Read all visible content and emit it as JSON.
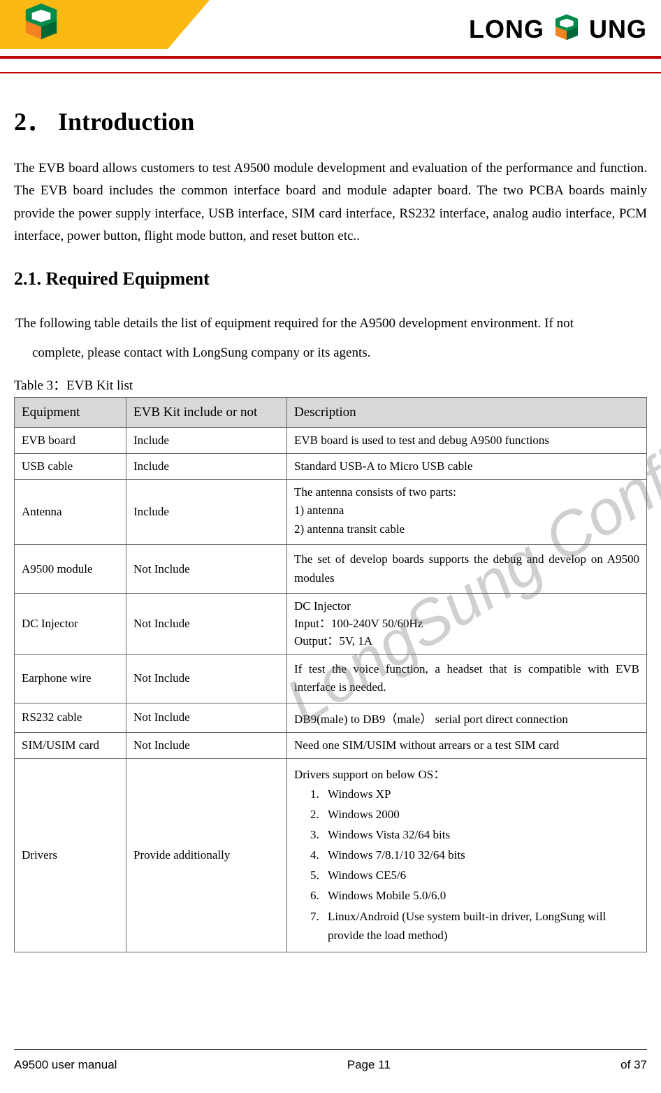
{
  "brand": {
    "name_left": "LONG",
    "name_right": "UNG"
  },
  "colors": {
    "accent_red": "#c00000",
    "accent_yellow": "#fdb913",
    "table_header_bg": "#d9d9d9",
    "logo_green": "#008c4a",
    "logo_orange": "#f58220"
  },
  "watermark": "LongSung Confidential",
  "heading1": "2． Introduction",
  "intro_paragraph": "The EVB board allows customers to test A9500 module development and evaluation of the performance and function. The EVB board includes the common interface board and module adapter board. The two PCBA boards mainly provide the power supply interface, USB interface, SIM card interface, RS232 interface, analog audio interface, PCM interface, power button, flight mode button, and reset button etc..",
  "heading2": "2.1. Required Equipment",
  "lead_line1": "The following table details the list of equipment required for the A9500 development environment. If not",
  "lead_line2": "complete, please contact with LongSung company or its agents.",
  "table_caption": "Table 3：EVB Kit list",
  "table": {
    "headers": [
      "Equipment",
      "EVB Kit include or not",
      "Description"
    ],
    "rows": [
      {
        "eq": "EVB board",
        "inc": "Include",
        "desc": "EVB board is used to test and debug A9500 functions"
      },
      {
        "eq": "USB cable",
        "inc": "Include",
        "desc": "Standard USB-A to Micro USB cable"
      },
      {
        "eq": "Antenna",
        "inc": "Include",
        "desc_intro": "The antenna consists of two parts:",
        "desc_list_paren": [
          "antenna",
          "antenna transit cable"
        ]
      },
      {
        "eq": "A9500 module",
        "inc": "Not Include",
        "desc": "The set of develop boards supports the debug and develop on A9500 modules",
        "justify": true
      },
      {
        "eq": "DC Injector",
        "inc": "Not Include",
        "desc_lines": [
          "DC Injector",
          "Input：100-240V 50/60Hz",
          "Output：5V, 1A"
        ]
      },
      {
        "eq": "Earphone wire",
        "inc": "Not Include",
        "desc": "If test the voice function, a headset that is compatible with EVB interface is needed.",
        "justify": true
      },
      {
        "eq": "RS232 cable",
        "inc": "Not Include",
        "desc": "DB9(male) to DB9（male）  serial port direct connection"
      },
      {
        "eq": "SIM/USIM card",
        "inc": "Not Include",
        "desc": "Need one SIM/USIM without arrears or a test SIM card"
      },
      {
        "eq": "Drivers",
        "inc": "Provide additionally",
        "desc_intro": "Drivers support on below OS：",
        "desc_list_num": [
          "Windows XP",
          "Windows 2000",
          "Windows Vista 32/64 bits",
          "Windows 7/8.1/10 32/64 bits",
          "Windows CE5/6",
          "Windows Mobile 5.0/6.0",
          "Linux/Android (Use system built-in driver, LongSung will provide the load method)"
        ]
      }
    ]
  },
  "footer": {
    "left": "A9500 user manual",
    "center": "Page 11",
    "right": "of 37"
  }
}
